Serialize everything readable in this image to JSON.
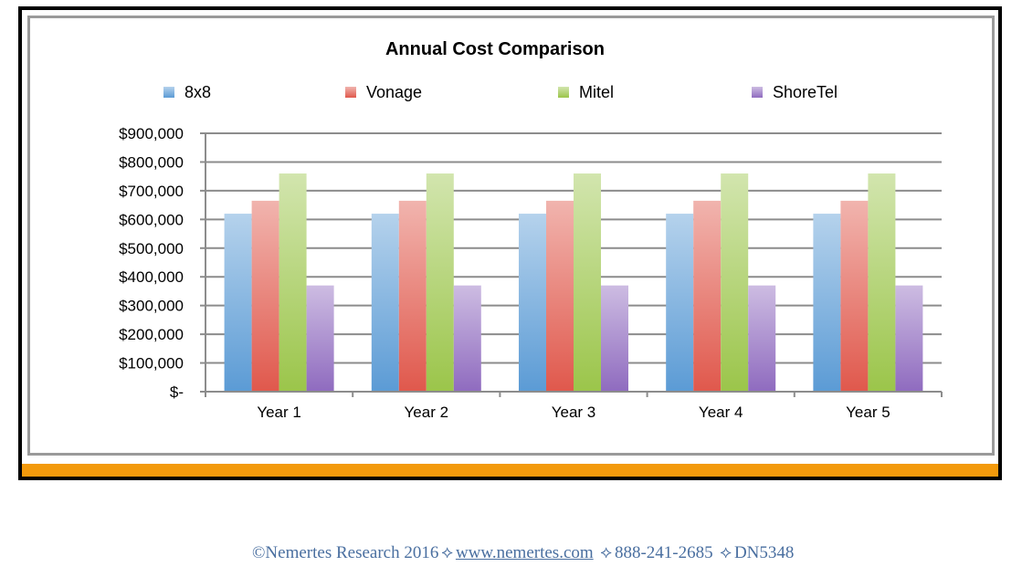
{
  "chart_data": {
    "type": "bar",
    "title": "Annual Cost Comparison",
    "xlabel": "",
    "ylabel": "",
    "categories": [
      "Year 1",
      "Year 2",
      "Year 3",
      "Year 4",
      "Year 5"
    ],
    "series": [
      {
        "name": "8x8",
        "values": [
          620000,
          620000,
          620000,
          620000,
          620000
        ],
        "color": "#5b9bd5"
      },
      {
        "name": "Vonage",
        "values": [
          665000,
          665000,
          665000,
          665000,
          665000
        ],
        "color": "#e0584c"
      },
      {
        "name": "Mitel",
        "values": [
          760000,
          760000,
          760000,
          760000,
          760000
        ],
        "color": "#9bc54a"
      },
      {
        "name": "ShoreTel",
        "values": [
          370000,
          370000,
          370000,
          370000,
          370000
        ],
        "color": "#8f6bbf"
      }
    ],
    "ylim": [
      0,
      900000
    ],
    "yticks": [
      0,
      100000,
      200000,
      300000,
      400000,
      500000,
      600000,
      700000,
      800000,
      900000
    ],
    "ytick_labels": [
      "$-",
      "$100,000",
      "$200,000",
      "$300,000",
      "$400,000",
      "$500,000",
      "$600,000",
      "$700,000",
      "$800,000",
      "$900,000"
    ],
    "grid": true,
    "legend_position": "top"
  },
  "footer": {
    "copyright": "©Nemertes Research 2016",
    "separator": "⟡",
    "website": "www.nemertes.com",
    "phone": "888-241-2685",
    "doc_id": "DN5348"
  },
  "colors": {
    "accent_band": "#f39a0c",
    "frame": "#000000",
    "chart_border": "#9a9a9a",
    "gridline": "#8c8c8c"
  }
}
